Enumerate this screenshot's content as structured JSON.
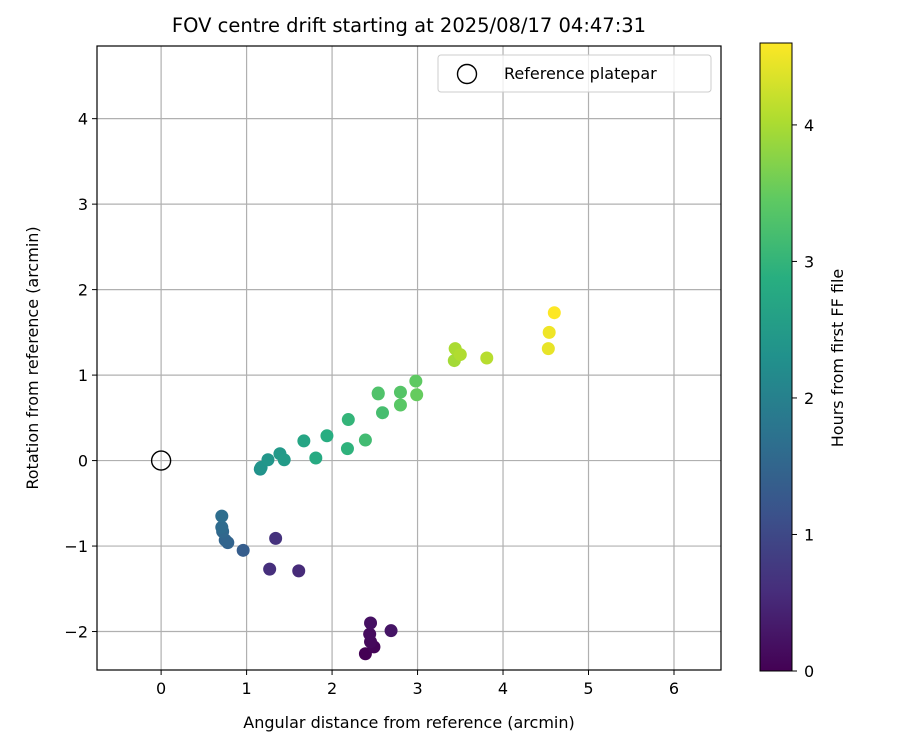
{
  "chart_data": {
    "type": "scatter",
    "title": "FOV centre drift starting at 2025/08/17 04:47:31",
    "xlabel": "Angular distance from reference (arcmin)",
    "ylabel": "Rotation from reference (arcmin)",
    "xlim": [
      -0.75,
      6.55
    ],
    "ylim": [
      -2.45,
      4.85
    ],
    "xticks": [
      "0",
      "1",
      "2",
      "3",
      "4",
      "5",
      "6"
    ],
    "yticks": [
      "−2",
      "−1",
      "0",
      "1",
      "2",
      "3",
      "4"
    ],
    "grid": true,
    "legend": {
      "position": "top-right",
      "entries": [
        "Reference platepar"
      ]
    },
    "reference_point": {
      "x": 0,
      "y": 0
    },
    "colorbar": {
      "label": "Hours from first FF file",
      "colormap": "viridis",
      "range": [
        0,
        4.6
      ],
      "ticks": [
        "0",
        "1",
        "2",
        "3",
        "4"
      ]
    },
    "points": [
      {
        "x": 2.39,
        "y": -2.26,
        "hours": 0.0
      },
      {
        "x": 2.49,
        "y": -2.18,
        "hours": 0.05
      },
      {
        "x": 2.45,
        "y": -2.12,
        "hours": 0.1
      },
      {
        "x": 2.44,
        "y": -2.03,
        "hours": 0.15
      },
      {
        "x": 2.45,
        "y": -1.9,
        "hours": 0.2
      },
      {
        "x": 2.69,
        "y": -1.99,
        "hours": 0.25
      },
      {
        "x": 1.61,
        "y": -1.29,
        "hours": 0.55
      },
      {
        "x": 1.27,
        "y": -1.27,
        "hours": 0.6
      },
      {
        "x": 1.34,
        "y": -0.91,
        "hours": 0.65
      },
      {
        "x": 0.96,
        "y": -1.05,
        "hours": 1.35
      },
      {
        "x": 0.78,
        "y": -0.96,
        "hours": 1.45
      },
      {
        "x": 0.75,
        "y": -0.93,
        "hours": 1.5
      },
      {
        "x": 0.72,
        "y": -0.83,
        "hours": 1.55
      },
      {
        "x": 0.71,
        "y": -0.78,
        "hours": 1.6
      },
      {
        "x": 0.71,
        "y": -0.65,
        "hours": 1.65
      },
      {
        "x": 1.16,
        "y": -0.1,
        "hours": 2.3
      },
      {
        "x": 1.17,
        "y": -0.08,
        "hours": 2.35
      },
      {
        "x": 1.25,
        "y": 0.01,
        "hours": 2.4
      },
      {
        "x": 1.39,
        "y": 0.08,
        "hours": 2.45
      },
      {
        "x": 1.44,
        "y": 0.01,
        "hours": 2.5
      },
      {
        "x": 1.67,
        "y": 0.23,
        "hours": 2.7
      },
      {
        "x": 1.81,
        "y": 0.03,
        "hours": 2.8
      },
      {
        "x": 1.94,
        "y": 0.29,
        "hours": 2.85
      },
      {
        "x": 2.18,
        "y": 0.14,
        "hours": 2.95
      },
      {
        "x": 2.19,
        "y": 0.48,
        "hours": 3.0
      },
      {
        "x": 2.39,
        "y": 0.24,
        "hours": 3.15
      },
      {
        "x": 2.59,
        "y": 0.56,
        "hours": 3.2
      },
      {
        "x": 2.54,
        "y": 0.79,
        "hours": 3.25
      },
      {
        "x": 2.54,
        "y": 0.78,
        "hours": 3.3
      },
      {
        "x": 2.8,
        "y": 0.8,
        "hours": 3.35
      },
      {
        "x": 2.8,
        "y": 0.65,
        "hours": 3.4
      },
      {
        "x": 2.98,
        "y": 0.93,
        "hours": 3.45
      },
      {
        "x": 2.99,
        "y": 0.77,
        "hours": 3.5
      },
      {
        "x": 3.43,
        "y": 1.17,
        "hours": 3.95
      },
      {
        "x": 3.44,
        "y": 1.31,
        "hours": 4.0
      },
      {
        "x": 3.5,
        "y": 1.24,
        "hours": 4.05
      },
      {
        "x": 3.81,
        "y": 1.2,
        "hours": 4.1
      },
      {
        "x": 4.53,
        "y": 1.31,
        "hours": 4.45
      },
      {
        "x": 4.54,
        "y": 1.5,
        "hours": 4.5
      },
      {
        "x": 4.6,
        "y": 1.73,
        "hours": 4.6
      }
    ]
  }
}
